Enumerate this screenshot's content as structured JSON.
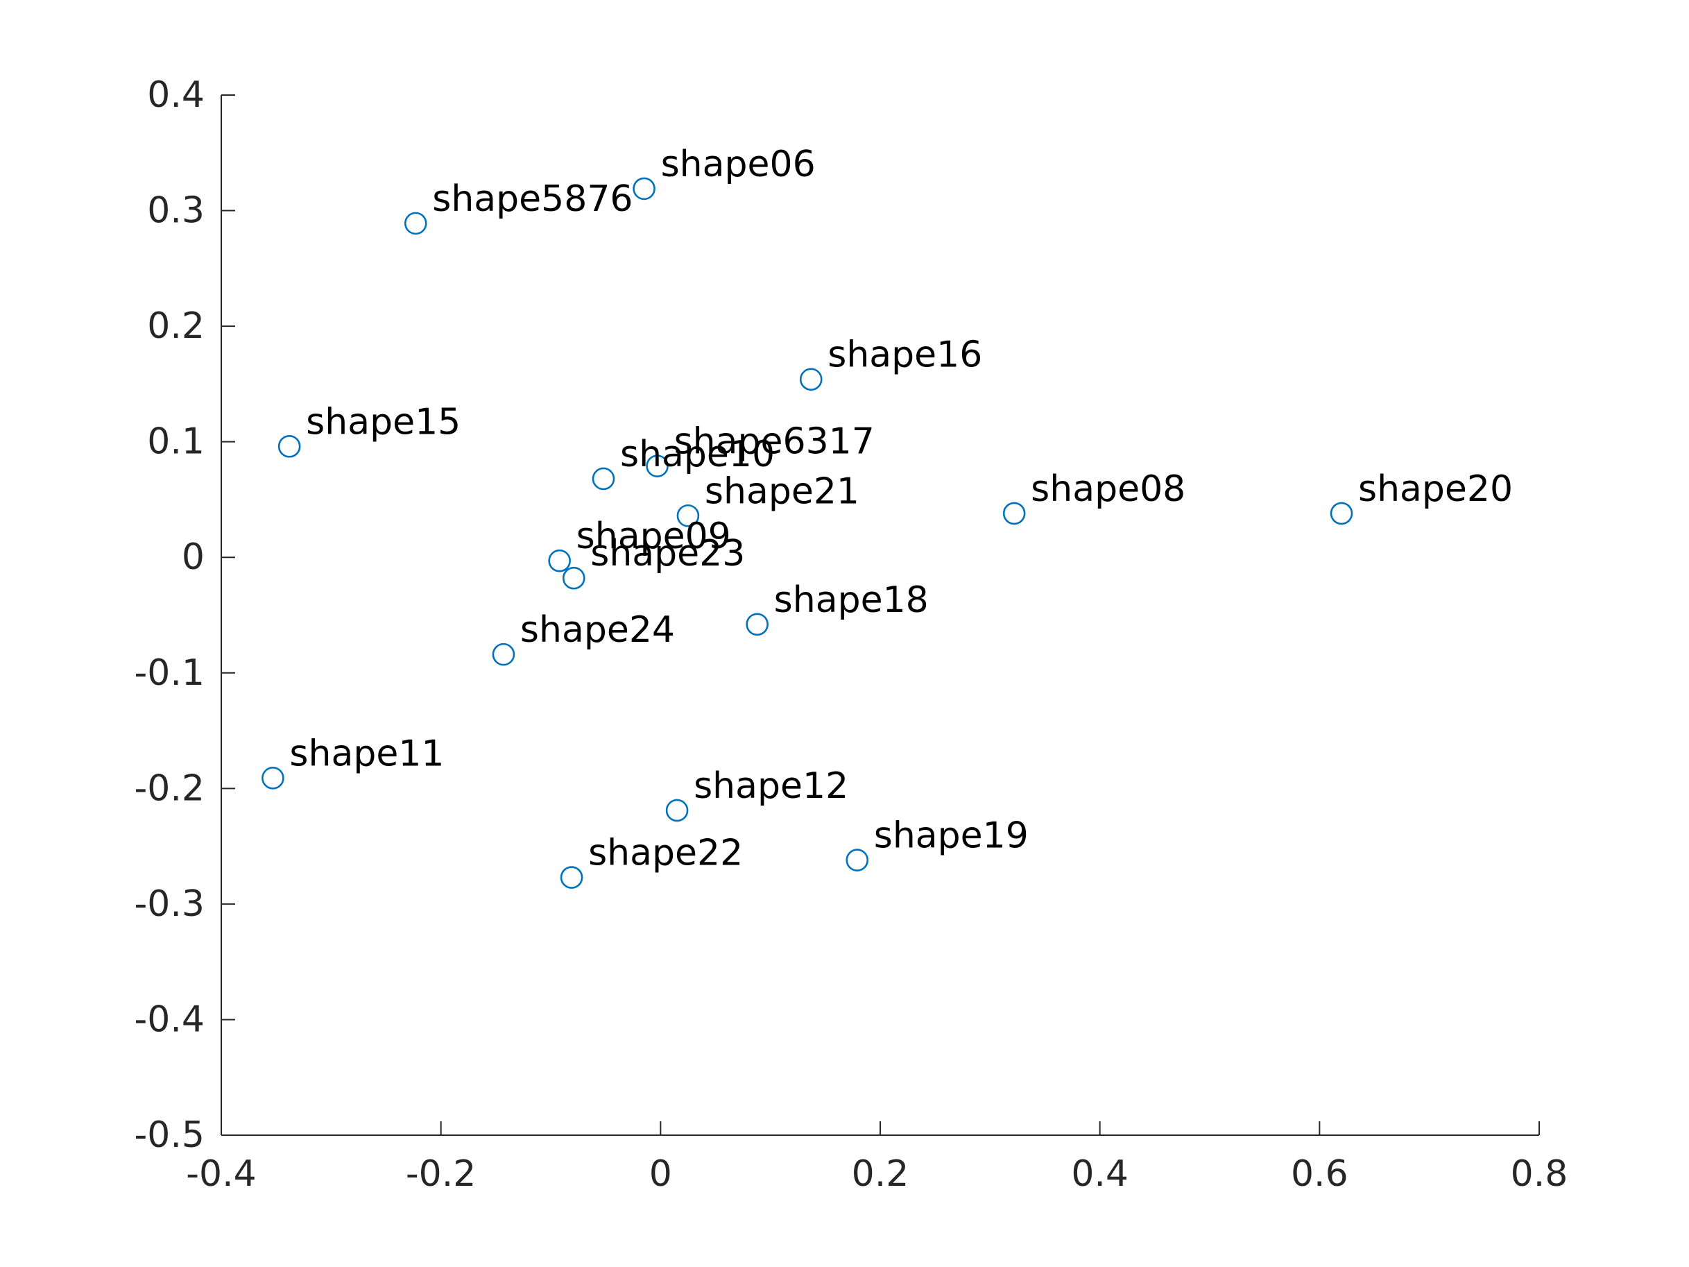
{
  "colors": {
    "marker": "#0072BD",
    "axis": "#262626",
    "label": "#000000",
    "background": "#ffffff"
  },
  "chart_data": {
    "type": "scatter",
    "marker": "open-circle",
    "grid": false,
    "legend": "none",
    "title": "",
    "xlabel": "",
    "ylabel": "",
    "xlim": [
      -0.4,
      0.8
    ],
    "ylim": [
      -0.5,
      0.4
    ],
    "xticks": [
      -0.4,
      -0.2,
      0,
      0.2,
      0.4,
      0.6,
      0.8
    ],
    "yticks": [
      -0.5,
      -0.4,
      -0.3,
      -0.2,
      -0.1,
      0,
      0.1,
      0.2,
      0.3,
      0.4
    ],
    "xtick_labels": [
      "-0.4",
      "-0.2",
      "0",
      "0.2",
      "0.4",
      "0.6",
      "0.8"
    ],
    "ytick_labels": [
      "-0.5",
      "-0.4",
      "-0.3",
      "-0.2",
      "-0.1",
      "0",
      "0.1",
      "0.2",
      "0.3",
      "0.4"
    ],
    "points": [
      {
        "label": "shape06",
        "x": -0.015,
        "y": 0.319
      },
      {
        "label": "shape5876",
        "x": -0.223,
        "y": 0.289
      },
      {
        "label": "shape16",
        "x": 0.137,
        "y": 0.154
      },
      {
        "label": "shape15",
        "x": -0.338,
        "y": 0.096
      },
      {
        "label": "shape6317",
        "x": -0.003,
        "y": 0.079
      },
      {
        "label": "shape10",
        "x": -0.052,
        "y": 0.068
      },
      {
        "label": "shape21",
        "x": 0.025,
        "y": 0.036
      },
      {
        "label": "shape08",
        "x": 0.322,
        "y": 0.038
      },
      {
        "label": "shape20",
        "x": 0.62,
        "y": 0.038
      },
      {
        "label": "shape09",
        "x": -0.092,
        "y": -0.003
      },
      {
        "label": "shape23",
        "x": -0.079,
        "y": -0.018
      },
      {
        "label": "shape18",
        "x": 0.088,
        "y": -0.058
      },
      {
        "label": "shape24",
        "x": -0.143,
        "y": -0.084
      },
      {
        "label": "shape11",
        "x": -0.353,
        "y": -0.191
      },
      {
        "label": "shape12",
        "x": 0.015,
        "y": -0.219
      },
      {
        "label": "shape19",
        "x": 0.179,
        "y": -0.262
      },
      {
        "label": "shape22",
        "x": -0.081,
        "y": -0.277
      }
    ]
  }
}
